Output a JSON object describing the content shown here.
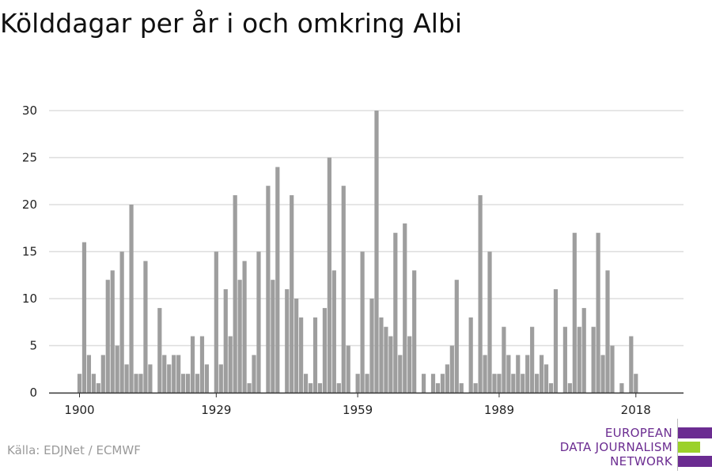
{
  "title": "Kölddagar per år i och omkring Albi",
  "source": "Källa: EDJNet / ECMWF",
  "logo": {
    "line1": "EUROPEAN",
    "line2": "DATA JOURNALISM",
    "line3": "NETWORK",
    "colors": {
      "primary": "#6b2c91",
      "accent": "#9bd12a"
    }
  },
  "colors": {
    "bar": "#9e9e9e",
    "grid": "#dddddd",
    "axis": "#333333"
  },
  "chart_data": {
    "type": "bar",
    "title": "Kölddagar per år i och omkring Albi",
    "xlabel": "",
    "ylabel": "",
    "ylim": [
      0,
      30
    ],
    "yticks": [
      0,
      5,
      10,
      15,
      20,
      25,
      30
    ],
    "xticks": [
      1900,
      1929,
      1959,
      1989,
      2018
    ],
    "grid": true,
    "x": [
      1900,
      1901,
      1902,
      1903,
      1904,
      1905,
      1906,
      1907,
      1908,
      1909,
      1910,
      1911,
      1912,
      1913,
      1914,
      1915,
      1916,
      1917,
      1918,
      1919,
      1920,
      1921,
      1922,
      1923,
      1924,
      1925,
      1926,
      1927,
      1928,
      1929,
      1930,
      1931,
      1932,
      1933,
      1934,
      1935,
      1936,
      1937,
      1938,
      1939,
      1940,
      1941,
      1942,
      1943,
      1944,
      1945,
      1946,
      1947,
      1948,
      1949,
      1950,
      1951,
      1952,
      1953,
      1954,
      1955,
      1956,
      1957,
      1958,
      1959,
      1960,
      1961,
      1962,
      1963,
      1964,
      1965,
      1966,
      1967,
      1968,
      1969,
      1970,
      1971,
      1972,
      1973,
      1974,
      1975,
      1976,
      1977,
      1978,
      1979,
      1980,
      1981,
      1982,
      1983,
      1984,
      1985,
      1986,
      1987,
      1988,
      1989,
      1990,
      1991,
      1992,
      1993,
      1994,
      1995,
      1996,
      1997,
      1998,
      1999,
      2000,
      2001,
      2002,
      2003,
      2004,
      2005,
      2006,
      2007,
      2008,
      2009,
      2010,
      2011,
      2012,
      2013,
      2014,
      2015,
      2016,
      2017,
      2018,
      2019
    ],
    "values": [
      2,
      16,
      4,
      2,
      1,
      4,
      12,
      13,
      5,
      15,
      3,
      20,
      2,
      2,
      14,
      3,
      0,
      9,
      4,
      3,
      4,
      4,
      2,
      2,
      6,
      2,
      6,
      3,
      0,
      15,
      3,
      11,
      6,
      21,
      12,
      14,
      1,
      4,
      15,
      0,
      22,
      12,
      24,
      0,
      11,
      21,
      10,
      8,
      2,
      1,
      8,
      1,
      9,
      25,
      13,
      1,
      22,
      5,
      0,
      2,
      15,
      2,
      10,
      30,
      8,
      7,
      6,
      17,
      4,
      18,
      6,
      13,
      0,
      2,
      0,
      2,
      1,
      2,
      3,
      5,
      12,
      1,
      0,
      8,
      1,
      21,
      4,
      15,
      2,
      2,
      7,
      4,
      2,
      4,
      2,
      4,
      7,
      2,
      4,
      3,
      1,
      11,
      0,
      7,
      1,
      17,
      7,
      9,
      0,
      7,
      17,
      4,
      13,
      5,
      0,
      1,
      0,
      6,
      2,
      0
    ]
  }
}
